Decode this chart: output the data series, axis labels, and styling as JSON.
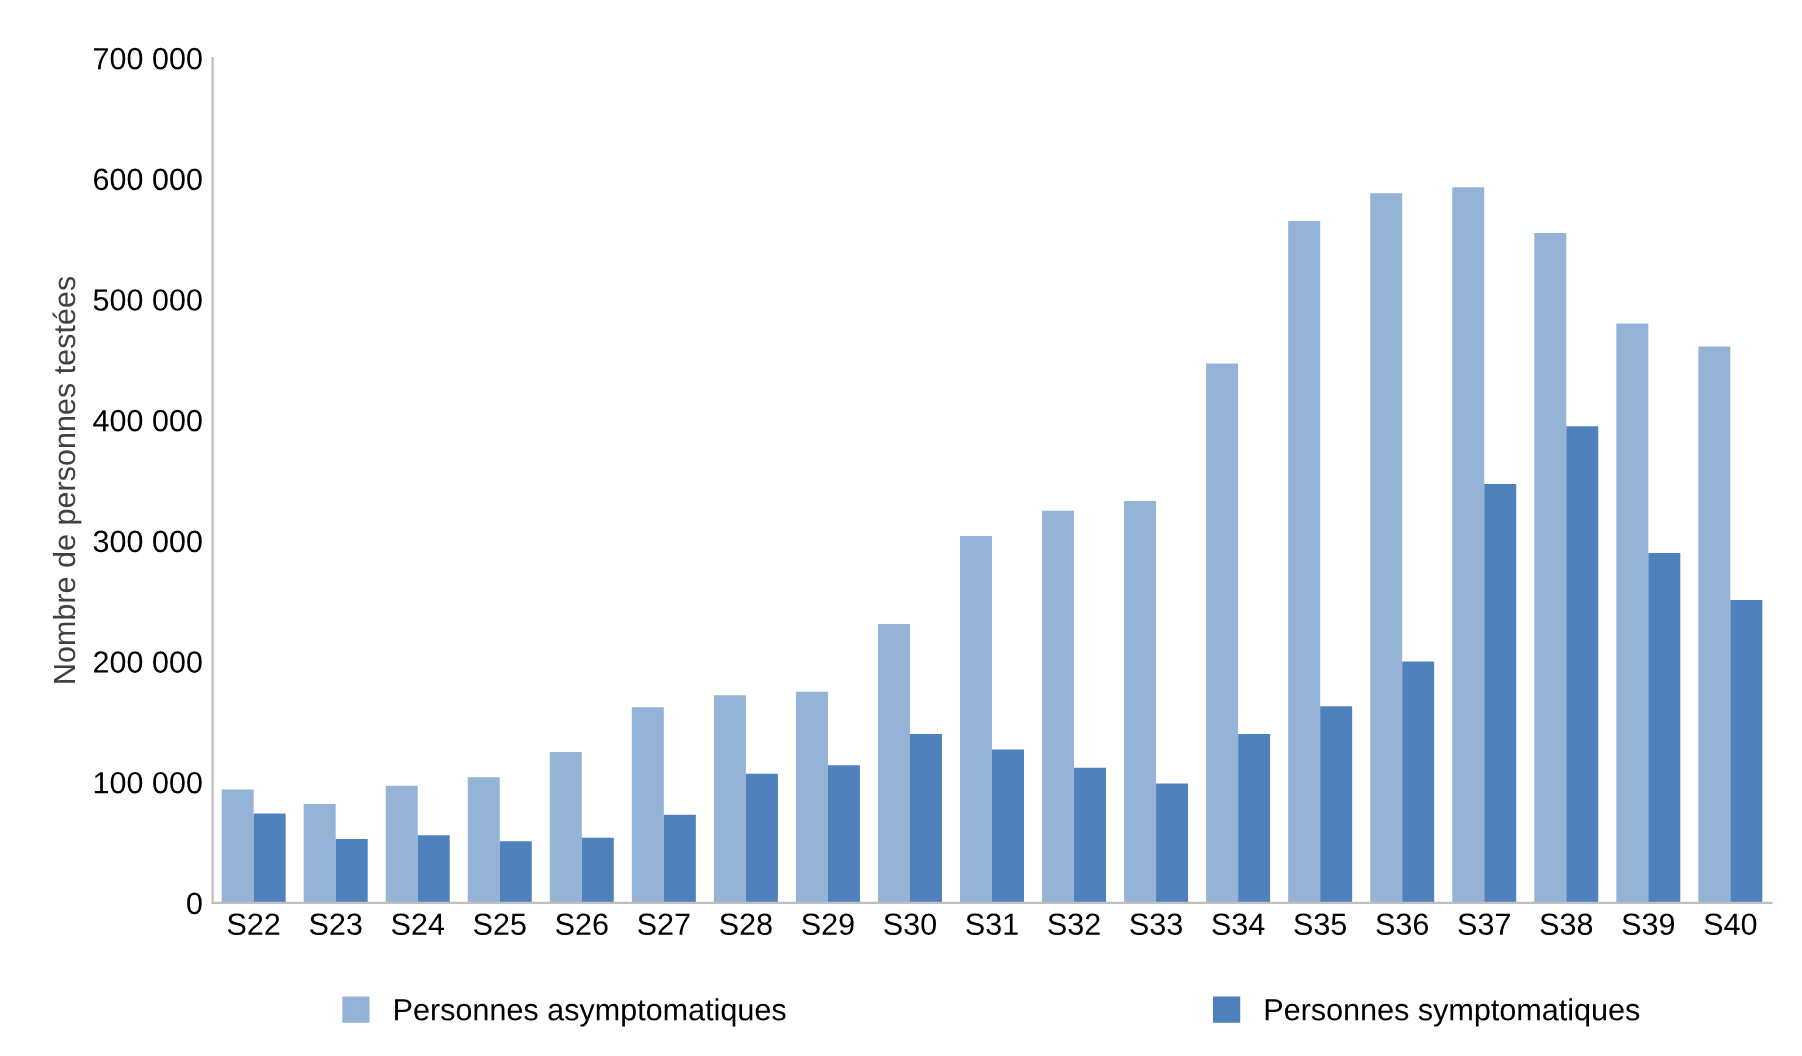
{
  "chart_data": {
    "type": "bar",
    "ylabel": "Nombre de personnes testées",
    "categories": [
      "S22",
      "S23",
      "S24",
      "S25",
      "S26",
      "S27",
      "S28",
      "S29",
      "S30",
      "S31",
      "S32",
      "S33",
      "S34",
      "S35",
      "S36",
      "S37",
      "S38",
      "S39",
      "S40"
    ],
    "series": [
      {
        "name": "Personnes asymptomatiques",
        "color": "#95b3d7",
        "values": [
          94000,
          82000,
          97000,
          104000,
          125000,
          162000,
          172000,
          175000,
          231000,
          304000,
          325000,
          333000,
          447000,
          565000,
          588000,
          593000,
          555000,
          480000,
          461000
        ]
      },
      {
        "name": "Personnes symptomatiques",
        "color": "#4f81bd",
        "values": [
          74000,
          53000,
          56000,
          51000,
          54000,
          73000,
          107000,
          114000,
          140000,
          127000,
          112000,
          99000,
          140000,
          163000,
          200000,
          347000,
          395000,
          290000,
          251000
        ]
      }
    ],
    "ylim": [
      0,
      700000
    ],
    "yticks": [
      0,
      {
        "value": 100000,
        "label": "100 000"
      },
      {
        "value": 200000,
        "label": "200 000"
      },
      {
        "value": 300000,
        "label": "300 000"
      },
      {
        "value": 400000,
        "label": "400 000"
      },
      {
        "value": 500000,
        "label": "500 000"
      },
      {
        "value": 600000,
        "label": "600 000"
      },
      {
        "value": 700000,
        "label": "700 000"
      }
    ],
    "grid": false,
    "legend": "bottom"
  }
}
